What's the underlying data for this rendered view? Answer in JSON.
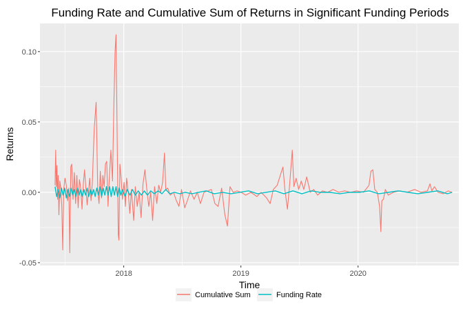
{
  "chart_data": {
    "type": "line",
    "title": "Funding Rate and Cumulative Sum of Returns in Significant Funding Periods",
    "xlabel": "Time",
    "ylabel": "Returns",
    "xlim": [
      "2017-04-15",
      "2020-11-10"
    ],
    "ylim": [
      -0.052,
      0.12
    ],
    "x_ticks": [
      "2018",
      "2019",
      "2020"
    ],
    "y_ticks": [
      -0.05,
      0.0,
      0.05,
      0.1
    ],
    "y_tick_labels": [
      "-0.05",
      "0.00",
      "0.05",
      "0.10"
    ],
    "grid": true,
    "legend_position": "bottom",
    "series": [
      {
        "name": "Cumulative Sum",
        "color": "#F8766D",
        "points": [
          [
            "2017-06-01",
            0.005
          ],
          [
            "2017-06-03",
            0.03
          ],
          [
            "2017-06-05",
            0.004
          ],
          [
            "2017-06-07",
            0.019
          ],
          [
            "2017-06-09",
            -0.005
          ],
          [
            "2017-06-11",
            0.012
          ],
          [
            "2017-06-13",
            -0.016
          ],
          [
            "2017-06-16",
            0.008
          ],
          [
            "2017-06-19",
            0.003
          ],
          [
            "2017-06-22",
            -0.01
          ],
          [
            "2017-06-25",
            -0.041
          ],
          [
            "2017-06-28",
            0.002
          ],
          [
            "2017-07-02",
            0.01
          ],
          [
            "2017-07-06",
            0.005
          ],
          [
            "2017-07-10",
            -0.006
          ],
          [
            "2017-07-14",
            0.003
          ],
          [
            "2017-07-17",
            -0.043
          ],
          [
            "2017-07-20",
            0.018
          ],
          [
            "2017-07-23",
            0.02
          ],
          [
            "2017-07-27",
            -0.005
          ],
          [
            "2017-07-31",
            0.014
          ],
          [
            "2017-08-04",
            -0.008
          ],
          [
            "2017-08-08",
            0.012
          ],
          [
            "2017-08-12",
            -0.011
          ],
          [
            "2017-08-16",
            0.009
          ],
          [
            "2017-08-20",
            0.003
          ],
          [
            "2017-08-24",
            -0.012
          ],
          [
            "2017-08-28",
            0.006
          ],
          [
            "2017-09-01",
            0.016
          ],
          [
            "2017-09-05",
            0.003
          ],
          [
            "2017-09-09",
            -0.009
          ],
          [
            "2017-09-13",
            0.0
          ],
          [
            "2017-09-17",
            0.01
          ],
          [
            "2017-09-21",
            -0.006
          ],
          [
            "2017-09-25",
            0.006
          ],
          [
            "2017-10-01",
            0.045
          ],
          [
            "2017-10-07",
            0.064
          ],
          [
            "2017-10-12",
            0.002
          ],
          [
            "2017-10-16",
            -0.008
          ],
          [
            "2017-10-20",
            0.015
          ],
          [
            "2017-10-24",
            -0.004
          ],
          [
            "2017-10-28",
            0.012
          ],
          [
            "2017-11-01",
            0.004
          ],
          [
            "2017-11-05",
            0.02
          ],
          [
            "2017-11-09",
            0.022
          ],
          [
            "2017-11-13",
            -0.01
          ],
          [
            "2017-11-17",
            0.01
          ],
          [
            "2017-11-22",
            0.03
          ],
          [
            "2017-11-27",
            0.008
          ],
          [
            "2017-12-01",
            0.06
          ],
          [
            "2017-12-05",
            0.1
          ],
          [
            "2017-12-08",
            0.112
          ],
          [
            "2017-12-12",
            0.03
          ],
          [
            "2017-12-15",
            -0.03
          ],
          [
            "2017-12-17",
            -0.034
          ],
          [
            "2017-12-20",
            0.02
          ],
          [
            "2017-12-24",
            0.01
          ],
          [
            "2017-12-28",
            -0.005
          ],
          [
            "2018-01-02",
            0.007
          ],
          [
            "2018-01-06",
            -0.01
          ],
          [
            "2018-01-10",
            0.01
          ],
          [
            "2018-01-15",
            0.0
          ],
          [
            "2018-01-20",
            -0.015
          ],
          [
            "2018-01-25",
            0.002
          ],
          [
            "2018-02-01",
            -0.02
          ],
          [
            "2018-02-06",
            0.004
          ],
          [
            "2018-02-12",
            -0.01
          ],
          [
            "2018-02-18",
            0.0
          ],
          [
            "2018-02-24",
            -0.018
          ],
          [
            "2018-03-02",
            0.006
          ],
          [
            "2018-03-08",
            0.016
          ],
          [
            "2018-03-14",
            0.002
          ],
          [
            "2018-03-20",
            -0.01
          ],
          [
            "2018-03-26",
            0.0
          ],
          [
            "2018-04-01",
            -0.02
          ],
          [
            "2018-04-07",
            0.004
          ],
          [
            "2018-04-14",
            -0.008
          ],
          [
            "2018-04-20",
            0.005
          ],
          [
            "2018-04-26",
            0.0
          ],
          [
            "2018-05-02",
            0.007
          ],
          [
            "2018-05-08",
            0.028
          ],
          [
            "2018-05-12",
            0.002
          ],
          [
            "2018-05-18",
            0.003
          ],
          [
            "2018-05-26",
            -0.002
          ],
          [
            "2018-06-05",
            0.0
          ],
          [
            "2018-06-14",
            -0.006
          ],
          [
            "2018-06-22",
            -0.01
          ],
          [
            "2018-06-30",
            0.002
          ],
          [
            "2018-07-10",
            -0.011
          ],
          [
            "2018-07-18",
            -0.006
          ],
          [
            "2018-07-28",
            0.001
          ],
          [
            "2018-08-08",
            -0.005
          ],
          [
            "2018-08-18",
            0.0
          ],
          [
            "2018-08-28",
            -0.008
          ],
          [
            "2018-09-08",
            0.0
          ],
          [
            "2018-09-20",
            0.001
          ],
          [
            "2018-10-01",
            0.002
          ],
          [
            "2018-10-12",
            -0.008
          ],
          [
            "2018-10-22",
            -0.01
          ],
          [
            "2018-11-02",
            0.003
          ],
          [
            "2018-11-12",
            -0.016
          ],
          [
            "2018-11-20",
            -0.024
          ],
          [
            "2018-11-28",
            0.004
          ],
          [
            "2018-12-08",
            0.0
          ],
          [
            "2018-12-20",
            0.001
          ],
          [
            "2019-01-02",
            0.0
          ],
          [
            "2019-01-16",
            -0.002
          ],
          [
            "2019-02-01",
            0.0
          ],
          [
            "2019-02-20",
            -0.003
          ],
          [
            "2019-03-05",
            0.0
          ],
          [
            "2019-03-22",
            -0.004
          ],
          [
            "2019-04-02",
            -0.008
          ],
          [
            "2019-04-12",
            0.002
          ],
          [
            "2019-04-24",
            0.005
          ],
          [
            "2019-05-05",
            0.013
          ],
          [
            "2019-05-12",
            0.018
          ],
          [
            "2019-05-18",
            0.002
          ],
          [
            "2019-05-26",
            -0.012
          ],
          [
            "2019-06-02",
            0.006
          ],
          [
            "2019-06-10",
            0.03
          ],
          [
            "2019-06-15",
            0.004
          ],
          [
            "2019-06-22",
            0.01
          ],
          [
            "2019-06-30",
            0.002
          ],
          [
            "2019-07-08",
            0.008
          ],
          [
            "2019-07-16",
            0.002
          ],
          [
            "2019-07-25",
            0.011
          ],
          [
            "2019-08-05",
            0.0
          ],
          [
            "2019-08-16",
            0.002
          ],
          [
            "2019-08-28",
            -0.002
          ],
          [
            "2019-09-12",
            0.001
          ],
          [
            "2019-09-28",
            0.0
          ],
          [
            "2019-10-15",
            0.002
          ],
          [
            "2019-11-02",
            0.0
          ],
          [
            "2019-11-20",
            0.001
          ],
          [
            "2019-12-08",
            0.0
          ],
          [
            "2019-12-28",
            0.001
          ],
          [
            "2020-01-18",
            0.0
          ],
          [
            "2020-02-04",
            0.005
          ],
          [
            "2020-02-10",
            0.015
          ],
          [
            "2020-02-16",
            0.016
          ],
          [
            "2020-02-22",
            0.002
          ],
          [
            "2020-03-01",
            0.0
          ],
          [
            "2020-03-08",
            -0.01
          ],
          [
            "2020-03-12",
            -0.028
          ],
          [
            "2020-03-15",
            -0.006
          ],
          [
            "2020-03-20",
            -0.005
          ],
          [
            "2020-03-26",
            0.002
          ],
          [
            "2020-04-04",
            -0.002
          ],
          [
            "2020-04-20",
            0.0
          ],
          [
            "2020-05-10",
            0.001
          ],
          [
            "2020-06-01",
            0.0
          ],
          [
            "2020-06-25",
            0.002
          ],
          [
            "2020-07-15",
            0.0
          ],
          [
            "2020-08-04",
            0.001
          ],
          [
            "2020-08-12",
            0.006
          ],
          [
            "2020-08-18",
            0.001
          ],
          [
            "2020-08-26",
            0.004
          ],
          [
            "2020-09-06",
            0.0
          ],
          [
            "2020-09-22",
            -0.001
          ],
          [
            "2020-10-08",
            0.001
          ],
          [
            "2020-10-20",
            0.0
          ]
        ]
      },
      {
        "name": "Funding Rate",
        "color": "#00BFC4",
        "points": [
          [
            "2017-06-01",
            0.004
          ],
          [
            "2017-06-06",
            -0.003
          ],
          [
            "2017-06-11",
            0.002
          ],
          [
            "2017-06-16",
            -0.004
          ],
          [
            "2017-06-21",
            0.003
          ],
          [
            "2017-06-26",
            -0.002
          ],
          [
            "2017-07-01",
            0.003
          ],
          [
            "2017-07-06",
            -0.004
          ],
          [
            "2017-07-11",
            0.002
          ],
          [
            "2017-07-16",
            -0.003
          ],
          [
            "2017-07-21",
            0.003
          ],
          [
            "2017-07-26",
            -0.002
          ],
          [
            "2017-07-31",
            0.002
          ],
          [
            "2017-08-05",
            -0.003
          ],
          [
            "2017-08-10",
            0.003
          ],
          [
            "2017-08-15",
            -0.002
          ],
          [
            "2017-08-20",
            0.002
          ],
          [
            "2017-08-25",
            -0.003
          ],
          [
            "2017-08-30",
            0.002
          ],
          [
            "2017-09-04",
            -0.002
          ],
          [
            "2017-09-09",
            0.003
          ],
          [
            "2017-09-14",
            -0.003
          ],
          [
            "2017-09-19",
            0.002
          ],
          [
            "2017-09-24",
            -0.002
          ],
          [
            "2017-09-29",
            0.002
          ],
          [
            "2017-10-04",
            -0.003
          ],
          [
            "2017-10-09",
            0.003
          ],
          [
            "2017-10-14",
            -0.002
          ],
          [
            "2017-10-19",
            0.004
          ],
          [
            "2017-10-24",
            -0.003
          ],
          [
            "2017-10-29",
            0.003
          ],
          [
            "2017-11-03",
            -0.002
          ],
          [
            "2017-11-08",
            0.004
          ],
          [
            "2017-11-13",
            -0.002
          ],
          [
            "2017-11-18",
            0.004
          ],
          [
            "2017-11-23",
            -0.003
          ],
          [
            "2017-11-28",
            0.004
          ],
          [
            "2017-12-03",
            -0.002
          ],
          [
            "2017-12-08",
            0.004
          ],
          [
            "2017-12-13",
            -0.003
          ],
          [
            "2017-12-18",
            0.003
          ],
          [
            "2017-12-23",
            -0.002
          ],
          [
            "2017-12-28",
            0.002
          ],
          [
            "2018-01-05",
            -0.003
          ],
          [
            "2018-01-12",
            0.002
          ],
          [
            "2018-01-20",
            -0.002
          ],
          [
            "2018-01-28",
            0.002
          ],
          [
            "2018-02-06",
            -0.002
          ],
          [
            "2018-02-15",
            0.001
          ],
          [
            "2018-02-25",
            -0.002
          ],
          [
            "2018-03-06",
            0.001
          ],
          [
            "2018-03-16",
            -0.002
          ],
          [
            "2018-03-26",
            0.001
          ],
          [
            "2018-04-06",
            -0.001
          ],
          [
            "2018-04-18",
            0.001
          ],
          [
            "2018-04-30",
            -0.001
          ],
          [
            "2018-05-12",
            0.002
          ],
          [
            "2018-05-24",
            -0.001
          ],
          [
            "2018-06-08",
            0.0
          ],
          [
            "2018-06-25",
            -0.001
          ],
          [
            "2018-07-12",
            0.0
          ],
          [
            "2018-08-01",
            -0.001
          ],
          [
            "2018-08-22",
            0.0
          ],
          [
            "2018-09-15",
            0.001
          ],
          [
            "2018-10-10",
            -0.001
          ],
          [
            "2018-11-05",
            0.0
          ],
          [
            "2018-12-01",
            -0.001
          ],
          [
            "2018-12-28",
            0.0
          ],
          [
            "2019-01-25",
            0.001
          ],
          [
            "2019-02-22",
            -0.001
          ],
          [
            "2019-03-20",
            0.0
          ],
          [
            "2019-04-18",
            0.001
          ],
          [
            "2019-05-15",
            -0.001
          ],
          [
            "2019-06-12",
            0.001
          ],
          [
            "2019-07-10",
            -0.001
          ],
          [
            "2019-08-08",
            0.001
          ],
          [
            "2019-09-05",
            0.0
          ],
          [
            "2019-10-05",
            0.0
          ],
          [
            "2019-11-05",
            -0.001
          ],
          [
            "2019-12-05",
            0.0
          ],
          [
            "2020-01-05",
            0.0
          ],
          [
            "2020-02-05",
            0.001
          ],
          [
            "2020-03-05",
            -0.001
          ],
          [
            "2020-04-05",
            0.0
          ],
          [
            "2020-05-05",
            0.001
          ],
          [
            "2020-06-05",
            0.0
          ],
          [
            "2020-07-05",
            -0.001
          ],
          [
            "2020-08-05",
            0.0
          ],
          [
            "2020-09-05",
            0.001
          ],
          [
            "2020-10-05",
            -0.001
          ],
          [
            "2020-10-20",
            0.0
          ]
        ]
      }
    ]
  }
}
